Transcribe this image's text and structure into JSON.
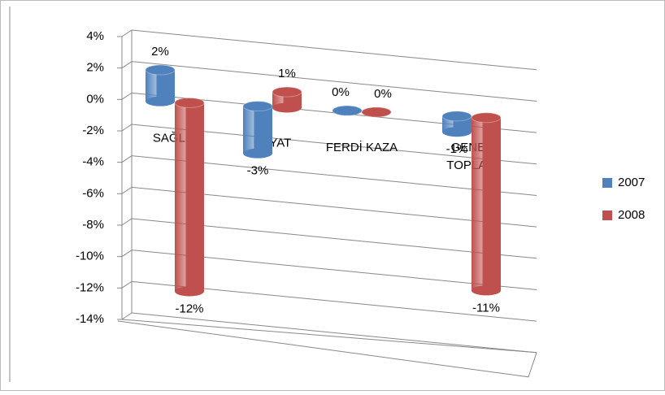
{
  "chart_data": {
    "type": "bar",
    "categories": [
      "SAĞLIK",
      "HAYAT",
      "FERDİ KAZA",
      "GENEL TOPLAM"
    ],
    "series": [
      {
        "name": "2007",
        "color": "#4f81bd",
        "values": [
          2,
          -3,
          0,
          -1
        ],
        "value_labels": [
          "2%",
          "-3%",
          "0%",
          "-1%"
        ]
      },
      {
        "name": "2008",
        "color": "#c0504d",
        "values": [
          -12,
          1,
          0,
          -11
        ],
        "value_labels": [
          "-12%",
          "1%",
          "0%",
          "-11%"
        ]
      }
    ],
    "ylim": [
      -14,
      4
    ],
    "yticks": [
      {
        "value": -14,
        "label": "-14%"
      },
      {
        "value": -12,
        "label": "-12%"
      },
      {
        "value": -10,
        "label": "-10%"
      },
      {
        "value": -8,
        "label": "-8%"
      },
      {
        "value": -6,
        "label": "-6%"
      },
      {
        "value": -4,
        "label": "-4%"
      },
      {
        "value": -2,
        "label": "-2%"
      },
      {
        "value": 0,
        "label": "0%"
      },
      {
        "value": 2,
        "label": "2%"
      },
      {
        "value": 4,
        "label": "4%"
      }
    ],
    "grid": true,
    "legend": "right"
  }
}
